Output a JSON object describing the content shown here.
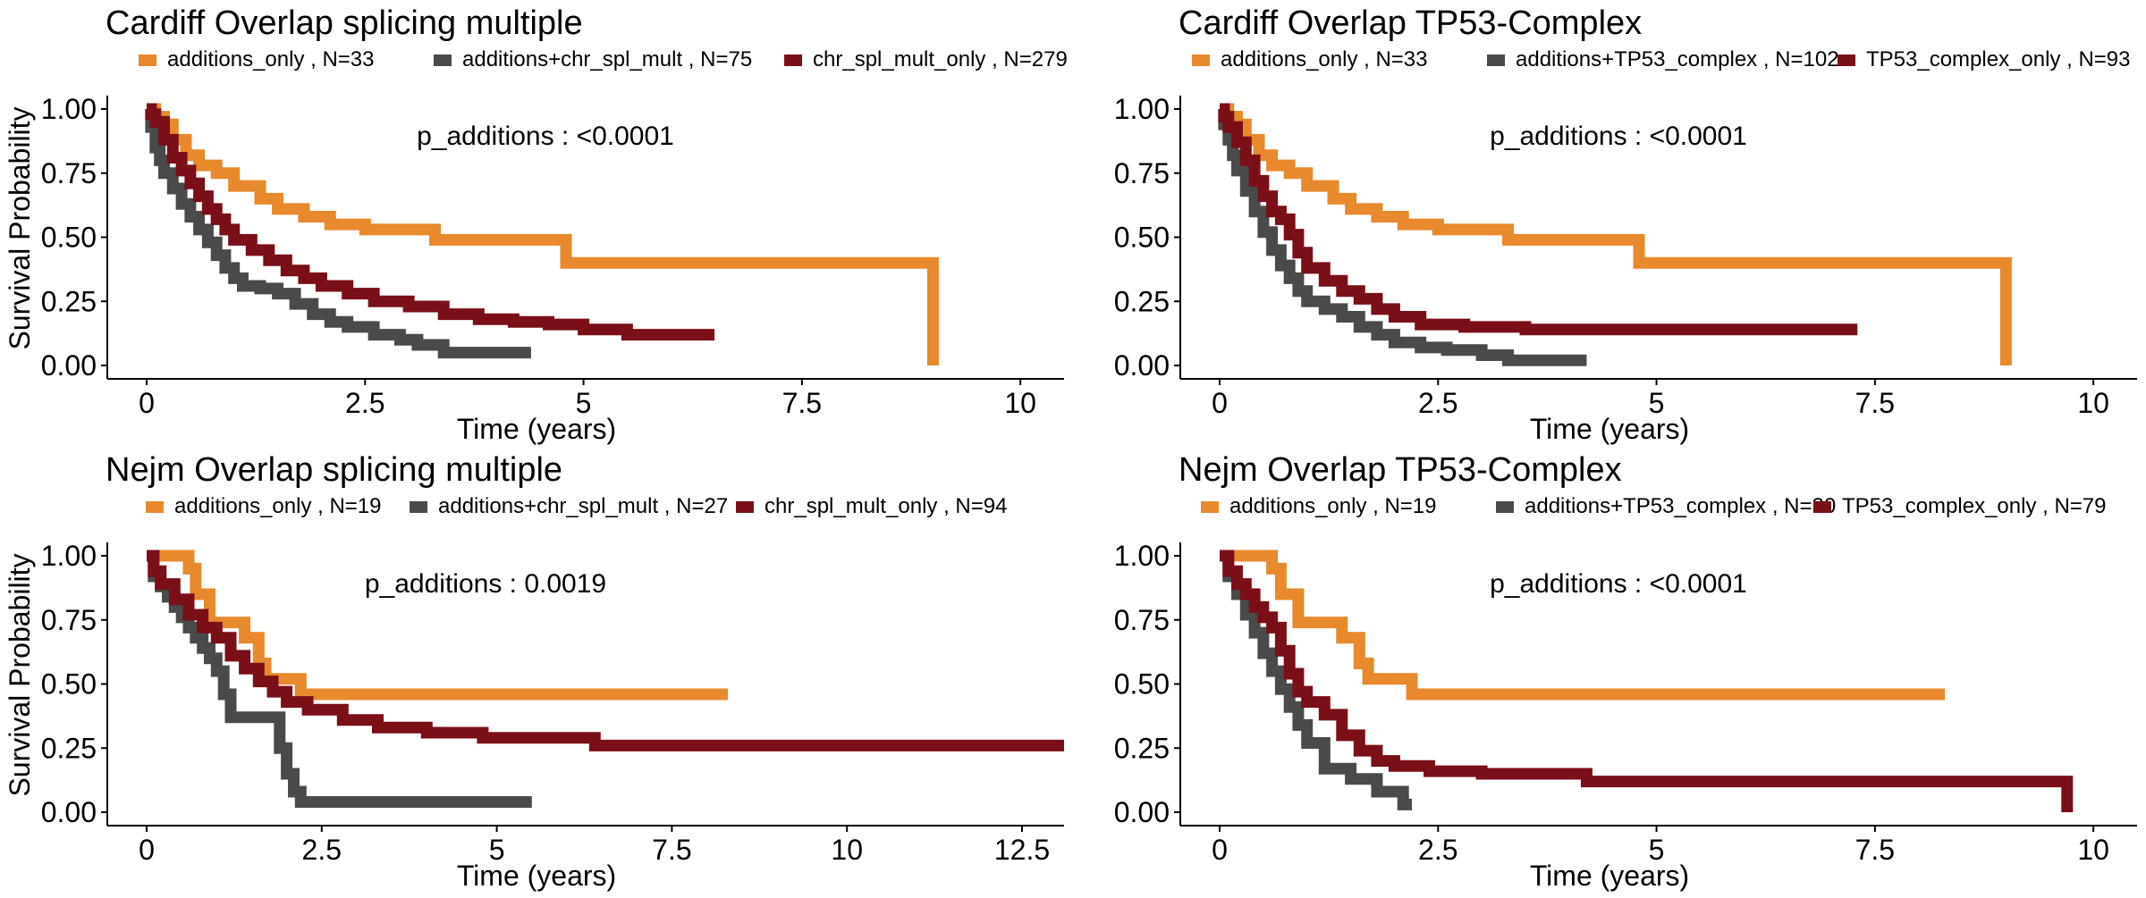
{
  "figure": {
    "y_axis_label": "Survival Probability",
    "colors": {
      "additions_only": "#E8892D",
      "additions_both": "#4A4A4A",
      "other_only": "#7A0F18",
      "axis": "#000000",
      "text": "#000000"
    }
  },
  "chart_data": [
    {
      "type": "line",
      "subtype": "kaplan-meier",
      "title": "Cardiff Overlap splicing multiple",
      "xlabel": "Time (years)",
      "ylabel": "Survival Probability",
      "xlim": [
        0,
        10.5
      ],
      "ylim": [
        0,
        1
      ],
      "xticks": [
        0,
        2.5,
        5,
        7.5,
        10
      ],
      "xtick_labels": [
        "0",
        "2.5",
        "5",
        "7.5",
        "10"
      ],
      "yticks": [
        0,
        0.25,
        0.5,
        0.75,
        1.0
      ],
      "ytick_labels": [
        "0.00",
        "0.25",
        "0.50",
        "0.75",
        "1.00"
      ],
      "annotation": "p_additions : <0.0001",
      "legend_position": "top",
      "grid": false,
      "series": [
        {
          "name": "additions_only , N=33",
          "color": "#E8892D",
          "x": [
            0,
            0.1,
            0.2,
            0.3,
            0.45,
            0.6,
            0.8,
            1.0,
            1.3,
            1.5,
            1.8,
            2.1,
            2.5,
            3.3,
            4.8,
            9.0,
            9.0
          ],
          "y": [
            1.0,
            0.97,
            0.94,
            0.88,
            0.82,
            0.78,
            0.75,
            0.7,
            0.65,
            0.61,
            0.58,
            0.55,
            0.53,
            0.49,
            0.4,
            0.4,
            0.0
          ]
        },
        {
          "name": "additions+chr_spl_mult , N=75",
          "color": "#4A4A4A",
          "x": [
            0,
            0.05,
            0.1,
            0.15,
            0.2,
            0.3,
            0.4,
            0.5,
            0.6,
            0.7,
            0.8,
            0.9,
            1.0,
            1.1,
            1.3,
            1.5,
            1.7,
            1.9,
            2.1,
            2.3,
            2.6,
            2.9,
            3.1,
            3.4,
            4.4
          ],
          "y": [
            1.0,
            0.93,
            0.85,
            0.8,
            0.75,
            0.69,
            0.63,
            0.58,
            0.53,
            0.48,
            0.43,
            0.38,
            0.34,
            0.31,
            0.3,
            0.28,
            0.24,
            0.2,
            0.17,
            0.15,
            0.12,
            0.1,
            0.08,
            0.05,
            0.05
          ]
        },
        {
          "name": "chr_spl_mult_only , N=279",
          "color": "#7A0F18",
          "x": [
            0,
            0.05,
            0.1,
            0.2,
            0.3,
            0.4,
            0.5,
            0.6,
            0.7,
            0.8,
            0.9,
            1.0,
            1.2,
            1.4,
            1.6,
            1.8,
            2.0,
            2.3,
            2.6,
            3.0,
            3.4,
            3.8,
            4.2,
            4.6,
            5.0,
            5.5,
            6.5
          ],
          "y": [
            1.0,
            0.98,
            0.95,
            0.88,
            0.81,
            0.76,
            0.71,
            0.66,
            0.61,
            0.57,
            0.53,
            0.49,
            0.45,
            0.41,
            0.37,
            0.34,
            0.31,
            0.28,
            0.25,
            0.23,
            0.2,
            0.18,
            0.17,
            0.16,
            0.14,
            0.12,
            0.12
          ]
        }
      ]
    },
    {
      "type": "line",
      "subtype": "kaplan-meier",
      "title": "Cardiff Overlap TP53-Complex",
      "xlabel": "Time (years)",
      "ylabel": "",
      "xlim": [
        0,
        10.5
      ],
      "ylim": [
        0,
        1
      ],
      "xticks": [
        0,
        2.5,
        5,
        7.5,
        10
      ],
      "xtick_labels": [
        "0",
        "2.5",
        "5",
        "7.5",
        "10"
      ],
      "yticks": [
        0,
        0.25,
        0.5,
        0.75,
        1.0
      ],
      "ytick_labels": [
        "0.00",
        "0.25",
        "0.50",
        "0.75",
        "1.00"
      ],
      "annotation": "p_additions : <0.0001",
      "legend_position": "top",
      "grid": false,
      "series": [
        {
          "name": "additions_only , N=33",
          "color": "#E8892D",
          "x": [
            0,
            0.1,
            0.2,
            0.3,
            0.45,
            0.6,
            0.8,
            1.0,
            1.3,
            1.5,
            1.8,
            2.1,
            2.5,
            3.3,
            4.8,
            9.0,
            9.0
          ],
          "y": [
            1.0,
            0.97,
            0.94,
            0.88,
            0.82,
            0.78,
            0.75,
            0.7,
            0.65,
            0.61,
            0.58,
            0.55,
            0.53,
            0.49,
            0.4,
            0.4,
            0.0
          ]
        },
        {
          "name": "additions+TP53_complex , N=102",
          "color": "#4A4A4A",
          "x": [
            0,
            0.05,
            0.1,
            0.15,
            0.2,
            0.3,
            0.4,
            0.5,
            0.6,
            0.7,
            0.8,
            0.9,
            1.0,
            1.2,
            1.4,
            1.6,
            1.8,
            2.0,
            2.3,
            2.6,
            3.0,
            3.3,
            4.2
          ],
          "y": [
            1.0,
            0.94,
            0.88,
            0.82,
            0.76,
            0.68,
            0.6,
            0.52,
            0.45,
            0.39,
            0.34,
            0.29,
            0.25,
            0.22,
            0.19,
            0.15,
            0.12,
            0.09,
            0.07,
            0.06,
            0.04,
            0.02,
            0.02
          ]
        },
        {
          "name": "TP53_complex_only , N=93",
          "color": "#7A0F18",
          "x": [
            0,
            0.05,
            0.1,
            0.2,
            0.3,
            0.4,
            0.5,
            0.6,
            0.7,
            0.8,
            0.9,
            1.0,
            1.2,
            1.4,
            1.6,
            1.8,
            2.0,
            2.3,
            2.8,
            3.5,
            5.0,
            7.3
          ],
          "y": [
            1.0,
            0.97,
            0.93,
            0.87,
            0.8,
            0.72,
            0.66,
            0.6,
            0.57,
            0.51,
            0.44,
            0.38,
            0.33,
            0.29,
            0.26,
            0.22,
            0.19,
            0.16,
            0.15,
            0.14,
            0.14,
            0.14
          ]
        }
      ]
    },
    {
      "type": "line",
      "subtype": "kaplan-meier",
      "title": "Nejm Overlap splicing multiple",
      "xlabel": "Time (years)",
      "ylabel": "Survival Probability",
      "xlim": [
        0,
        13.1
      ],
      "ylim": [
        0,
        1
      ],
      "xticks": [
        0,
        2.5,
        5,
        7.5,
        10,
        12.5
      ],
      "xtick_labels": [
        "0",
        "2.5",
        "5",
        "7.5",
        "10",
        "12.5"
      ],
      "yticks": [
        0,
        0.25,
        0.5,
        0.75,
        1.0
      ],
      "ytick_labels": [
        "0.00",
        "0.25",
        "0.50",
        "0.75",
        "1.00"
      ],
      "annotation": "p_additions : 0.0019",
      "legend_position": "top",
      "grid": false,
      "series": [
        {
          "name": "additions_only , N=19",
          "color": "#E8892D",
          "x": [
            0,
            0.6,
            0.7,
            0.9,
            1.4,
            1.6,
            1.7,
            2.2,
            8.3
          ],
          "y": [
            1.0,
            0.95,
            0.85,
            0.74,
            0.68,
            0.58,
            0.52,
            0.46,
            0.46
          ]
        },
        {
          "name": "additions+chr_spl_mult , N=27",
          "color": "#4A4A4A",
          "x": [
            0,
            0.1,
            0.2,
            0.3,
            0.4,
            0.5,
            0.6,
            0.7,
            0.8,
            0.9,
            1.0,
            1.1,
            1.2,
            1.9,
            2.0,
            2.1,
            2.2,
            5.5
          ],
          "y": [
            1.0,
            0.92,
            0.88,
            0.84,
            0.8,
            0.76,
            0.72,
            0.68,
            0.64,
            0.6,
            0.55,
            0.46,
            0.37,
            0.25,
            0.15,
            0.08,
            0.04,
            0.04
          ]
        },
        {
          "name": "chr_spl_mult_only , N=94",
          "color": "#7A0F18",
          "x": [
            0,
            0.1,
            0.2,
            0.4,
            0.6,
            0.8,
            1.0,
            1.2,
            1.4,
            1.6,
            1.8,
            2.0,
            2.3,
            2.8,
            3.3,
            4.0,
            4.8,
            6.4,
            13.1
          ],
          "y": [
            1.0,
            0.94,
            0.89,
            0.83,
            0.77,
            0.72,
            0.68,
            0.61,
            0.56,
            0.51,
            0.47,
            0.43,
            0.4,
            0.36,
            0.33,
            0.31,
            0.29,
            0.26,
            0.26
          ]
        }
      ]
    },
    {
      "type": "line",
      "subtype": "kaplan-meier",
      "title": "Nejm Overlap TP53-Complex",
      "xlabel": "Time (years)",
      "ylabel": "",
      "xlim": [
        0,
        10.5
      ],
      "ylim": [
        0,
        1
      ],
      "xticks": [
        0,
        2.5,
        5,
        7.5,
        10
      ],
      "xtick_labels": [
        "0",
        "2.5",
        "5",
        "7.5",
        "10"
      ],
      "yticks": [
        0,
        0.25,
        0.5,
        0.75,
        1.0
      ],
      "ytick_labels": [
        "0.00",
        "0.25",
        "0.50",
        "0.75",
        "1.00"
      ],
      "annotation": "p_additions : <0.0001",
      "legend_position": "top",
      "grid": false,
      "series": [
        {
          "name": "additions_only , N=19",
          "color": "#E8892D",
          "x": [
            0,
            0.6,
            0.7,
            0.9,
            1.4,
            1.6,
            1.7,
            2.2,
            8.3
          ],
          "y": [
            1.0,
            0.95,
            0.85,
            0.74,
            0.68,
            0.58,
            0.52,
            0.46,
            0.46
          ]
        },
        {
          "name": "additions+TP53_complex , N=30",
          "color": "#4A4A4A",
          "x": [
            0,
            0.1,
            0.2,
            0.3,
            0.4,
            0.5,
            0.6,
            0.7,
            0.8,
            0.9,
            1.0,
            1.2,
            1.5,
            1.8,
            2.1,
            2.2
          ],
          "y": [
            1.0,
            0.92,
            0.85,
            0.77,
            0.7,
            0.62,
            0.55,
            0.48,
            0.41,
            0.34,
            0.27,
            0.17,
            0.13,
            0.08,
            0.03,
            0.03
          ]
        },
        {
          "name": "TP53_complex_only , N=79",
          "color": "#7A0F18",
          "x": [
            0,
            0.1,
            0.2,
            0.3,
            0.4,
            0.5,
            0.6,
            0.7,
            0.8,
            0.9,
            1.0,
            1.2,
            1.4,
            1.6,
            1.8,
            2.0,
            2.4,
            3.0,
            4.2,
            9.7,
            9.7
          ],
          "y": [
            1.0,
            0.94,
            0.89,
            0.85,
            0.8,
            0.76,
            0.72,
            0.63,
            0.54,
            0.47,
            0.43,
            0.38,
            0.3,
            0.24,
            0.2,
            0.18,
            0.16,
            0.15,
            0.12,
            0.12,
            0.0
          ]
        }
      ]
    }
  ]
}
